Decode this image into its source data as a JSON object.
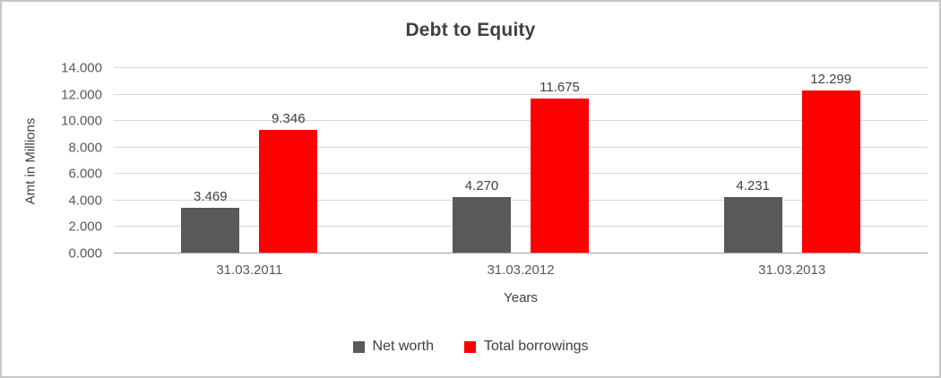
{
  "chart_data": {
    "type": "bar",
    "title": "Debt to Equity",
    "xlabel": "Years",
    "ylabel": "Amt in Millions",
    "categories": [
      "31.03.2011",
      "31.03.2012",
      "31.03.2013"
    ],
    "series": [
      {
        "name": "Net worth",
        "color": "#595959",
        "values": [
          3.469,
          4.27,
          4.231
        ],
        "labels": [
          "3.469",
          "4.270",
          "4.231"
        ]
      },
      {
        "name": "Total borrowings",
        "color": "#ff0000",
        "values": [
          9.346,
          11.675,
          12.299
        ],
        "labels": [
          "9.346",
          "11.675",
          "12.299"
        ]
      }
    ],
    "ylim": [
      0,
      14
    ],
    "yticks": [
      "0.000",
      "2.000",
      "4.000",
      "6.000",
      "8.000",
      "10.000",
      "12.000",
      "14.000"
    ],
    "grid": true,
    "legend_position": "bottom"
  }
}
